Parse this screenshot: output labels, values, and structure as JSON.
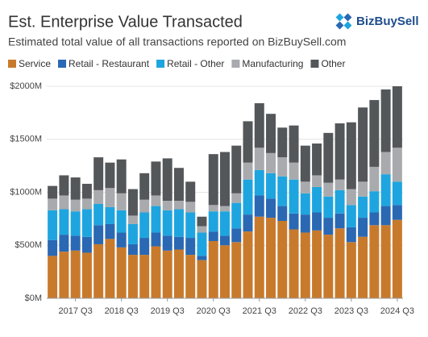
{
  "chart_data": {
    "type": "stacked-bar",
    "title": "Est. Enterprise Value Transacted",
    "subtitle": "Estimated total value of all transactions reported on BizBuySell.com",
    "brand": "BizBuySell",
    "categories": [
      null,
      null,
      "2017 Q3",
      null,
      null,
      null,
      "2018 Q3",
      null,
      null,
      null,
      "2019 Q3",
      null,
      null,
      null,
      "2020 Q3",
      null,
      null,
      null,
      "2021 Q3",
      null,
      null,
      null,
      "2022 Q3",
      null,
      null,
      null,
      "2023 Q3",
      null,
      null,
      null,
      "2024 Q3"
    ],
    "series": [
      {
        "name": "Service",
        "color": "#c87a2c",
        "values": [
          400,
          440,
          450,
          430,
          510,
          560,
          480,
          410,
          410,
          490,
          450,
          460,
          410,
          360,
          540,
          500,
          530,
          630,
          770,
          760,
          730,
          650,
          620,
          640,
          600,
          660,
          530,
          580,
          690,
          690,
          740
        ]
      },
      {
        "name": "Retail - Restaurant",
        "color": "#2a68b3",
        "values": [
          150,
          160,
          140,
          150,
          180,
          140,
          140,
          100,
          160,
          130,
          140,
          120,
          160,
          40,
          90,
          90,
          130,
          160,
          200,
          180,
          140,
          150,
          170,
          170,
          160,
          140,
          140,
          180,
          120,
          180,
          140
        ]
      },
      {
        "name": "Retail - Other",
        "color": "#1ea5df",
        "values": [
          280,
          240,
          230,
          260,
          200,
          160,
          210,
          190,
          240,
          250,
          240,
          260,
          240,
          220,
          190,
          230,
          240,
          330,
          240,
          240,
          280,
          320,
          200,
          240,
          200,
          220,
          210,
          200,
          200,
          300,
          220
        ]
      },
      {
        "name": "Manufacturing",
        "color": "#a8aaad",
        "values": [
          110,
          130,
          110,
          100,
          130,
          180,
          160,
          80,
          120,
          100,
          90,
          80,
          100,
          60,
          60,
          50,
          90,
          160,
          210,
          190,
          180,
          160,
          110,
          110,
          130,
          100,
          150,
          140,
          230,
          210,
          320
        ]
      },
      {
        "name": "Other",
        "color": "#54575a",
        "values": [
          120,
          190,
          210,
          140,
          310,
          240,
          320,
          250,
          250,
          320,
          400,
          310,
          190,
          90,
          480,
          510,
          450,
          390,
          420,
          370,
          280,
          350,
          340,
          300,
          470,
          530,
          630,
          700,
          630,
          590,
          580
        ]
      }
    ],
    "ylim": [
      0,
      2000
    ],
    "yticks": [
      {
        "value": 0,
        "label": "$0M"
      },
      {
        "value": 500,
        "label": "$500M"
      },
      {
        "value": 1000,
        "label": "$1000M"
      },
      {
        "value": 1500,
        "label": "$1500M"
      },
      {
        "value": 2000,
        "label": "$2000M"
      }
    ],
    "grid": true
  }
}
